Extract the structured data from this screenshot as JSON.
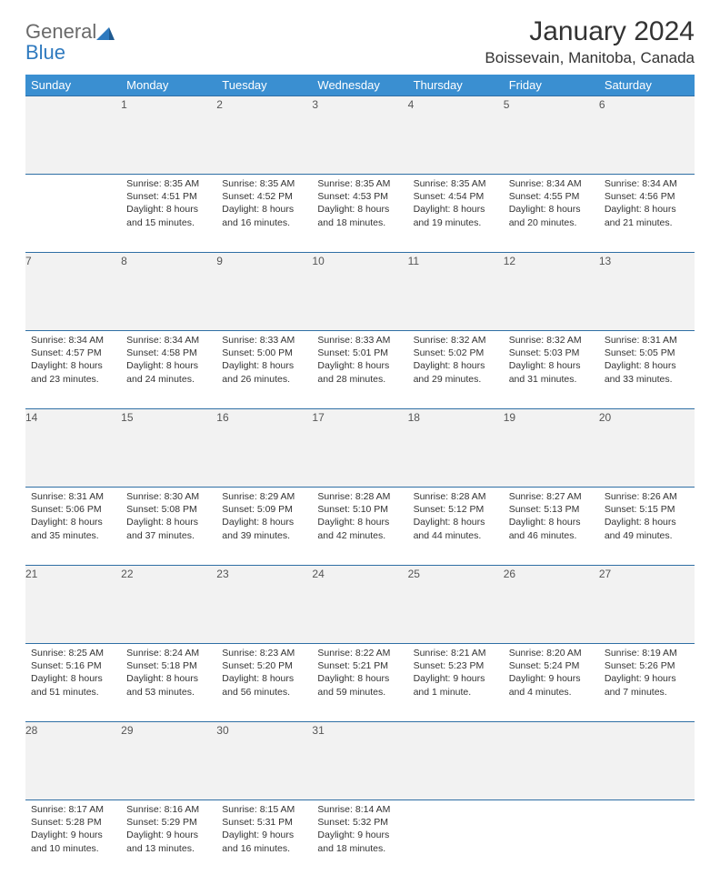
{
  "logo": {
    "general": "General",
    "blue": "Blue"
  },
  "title": "January 2024",
  "location": "Boissevain, Manitoba, Canada",
  "colors": {
    "header_bg": "#3a8fd1",
    "header_text": "#ffffff",
    "daynum_bg": "#f2f2f2",
    "rule": "#2f6fa5",
    "text": "#333333",
    "logo_gray": "#6a6a6a",
    "logo_blue": "#2f7abf"
  },
  "day_headers": [
    "Sunday",
    "Monday",
    "Tuesday",
    "Wednesday",
    "Thursday",
    "Friday",
    "Saturday"
  ],
  "weeks": [
    {
      "nums": [
        "",
        "1",
        "2",
        "3",
        "4",
        "5",
        "6"
      ],
      "cells": [
        null,
        {
          "sunrise": "8:35 AM",
          "sunset": "4:51 PM",
          "daylight": "8 hours and 15 minutes."
        },
        {
          "sunrise": "8:35 AM",
          "sunset": "4:52 PM",
          "daylight": "8 hours and 16 minutes."
        },
        {
          "sunrise": "8:35 AM",
          "sunset": "4:53 PM",
          "daylight": "8 hours and 18 minutes."
        },
        {
          "sunrise": "8:35 AM",
          "sunset": "4:54 PM",
          "daylight": "8 hours and 19 minutes."
        },
        {
          "sunrise": "8:34 AM",
          "sunset": "4:55 PM",
          "daylight": "8 hours and 20 minutes."
        },
        {
          "sunrise": "8:34 AM",
          "sunset": "4:56 PM",
          "daylight": "8 hours and 21 minutes."
        }
      ]
    },
    {
      "nums": [
        "7",
        "8",
        "9",
        "10",
        "11",
        "12",
        "13"
      ],
      "cells": [
        {
          "sunrise": "8:34 AM",
          "sunset": "4:57 PM",
          "daylight": "8 hours and 23 minutes."
        },
        {
          "sunrise": "8:34 AM",
          "sunset": "4:58 PM",
          "daylight": "8 hours and 24 minutes."
        },
        {
          "sunrise": "8:33 AM",
          "sunset": "5:00 PM",
          "daylight": "8 hours and 26 minutes."
        },
        {
          "sunrise": "8:33 AM",
          "sunset": "5:01 PM",
          "daylight": "8 hours and 28 minutes."
        },
        {
          "sunrise": "8:32 AM",
          "sunset": "5:02 PM",
          "daylight": "8 hours and 29 minutes."
        },
        {
          "sunrise": "8:32 AM",
          "sunset": "5:03 PM",
          "daylight": "8 hours and 31 minutes."
        },
        {
          "sunrise": "8:31 AM",
          "sunset": "5:05 PM",
          "daylight": "8 hours and 33 minutes."
        }
      ]
    },
    {
      "nums": [
        "14",
        "15",
        "16",
        "17",
        "18",
        "19",
        "20"
      ],
      "cells": [
        {
          "sunrise": "8:31 AM",
          "sunset": "5:06 PM",
          "daylight": "8 hours and 35 minutes."
        },
        {
          "sunrise": "8:30 AM",
          "sunset": "5:08 PM",
          "daylight": "8 hours and 37 minutes."
        },
        {
          "sunrise": "8:29 AM",
          "sunset": "5:09 PM",
          "daylight": "8 hours and 39 minutes."
        },
        {
          "sunrise": "8:28 AM",
          "sunset": "5:10 PM",
          "daylight": "8 hours and 42 minutes."
        },
        {
          "sunrise": "8:28 AM",
          "sunset": "5:12 PM",
          "daylight": "8 hours and 44 minutes."
        },
        {
          "sunrise": "8:27 AM",
          "sunset": "5:13 PM",
          "daylight": "8 hours and 46 minutes."
        },
        {
          "sunrise": "8:26 AM",
          "sunset": "5:15 PM",
          "daylight": "8 hours and 49 minutes."
        }
      ]
    },
    {
      "nums": [
        "21",
        "22",
        "23",
        "24",
        "25",
        "26",
        "27"
      ],
      "cells": [
        {
          "sunrise": "8:25 AM",
          "sunset": "5:16 PM",
          "daylight": "8 hours and 51 minutes."
        },
        {
          "sunrise": "8:24 AM",
          "sunset": "5:18 PM",
          "daylight": "8 hours and 53 minutes."
        },
        {
          "sunrise": "8:23 AM",
          "sunset": "5:20 PM",
          "daylight": "8 hours and 56 minutes."
        },
        {
          "sunrise": "8:22 AM",
          "sunset": "5:21 PM",
          "daylight": "8 hours and 59 minutes."
        },
        {
          "sunrise": "8:21 AM",
          "sunset": "5:23 PM",
          "daylight": "9 hours and 1 minute."
        },
        {
          "sunrise": "8:20 AM",
          "sunset": "5:24 PM",
          "daylight": "9 hours and 4 minutes."
        },
        {
          "sunrise": "8:19 AM",
          "sunset": "5:26 PM",
          "daylight": "9 hours and 7 minutes."
        }
      ]
    },
    {
      "nums": [
        "28",
        "29",
        "30",
        "31",
        "",
        "",
        ""
      ],
      "cells": [
        {
          "sunrise": "8:17 AM",
          "sunset": "5:28 PM",
          "daylight": "9 hours and 10 minutes."
        },
        {
          "sunrise": "8:16 AM",
          "sunset": "5:29 PM",
          "daylight": "9 hours and 13 minutes."
        },
        {
          "sunrise": "8:15 AM",
          "sunset": "5:31 PM",
          "daylight": "9 hours and 16 minutes."
        },
        {
          "sunrise": "8:14 AM",
          "sunset": "5:32 PM",
          "daylight": "9 hours and 18 minutes."
        },
        null,
        null,
        null
      ]
    }
  ],
  "labels": {
    "sunrise": "Sunrise: ",
    "sunset": "Sunset: ",
    "daylight": "Daylight: "
  }
}
